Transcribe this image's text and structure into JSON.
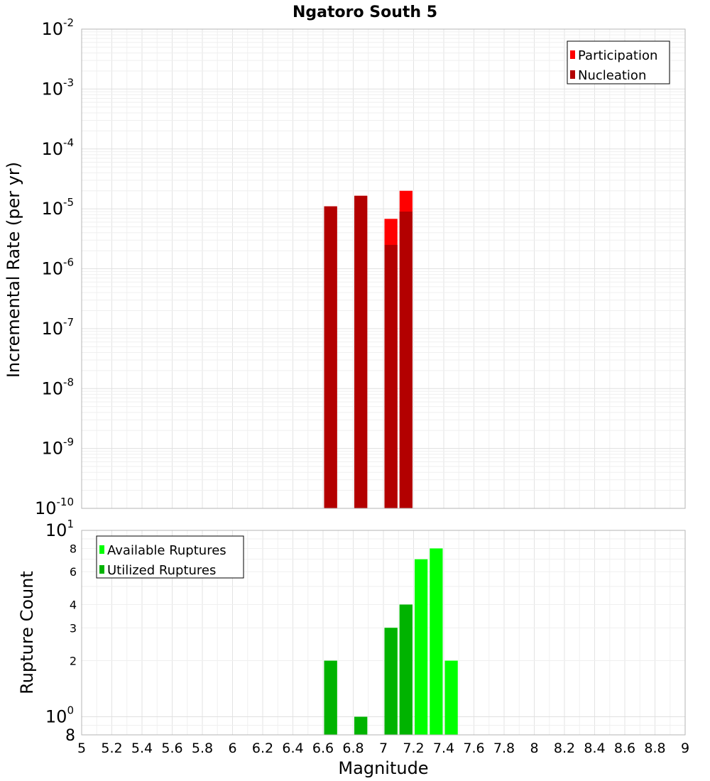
{
  "title": "Ngatoro South 5",
  "chart_data": [
    {
      "type": "bar",
      "title": "Ngatoro South 5",
      "xlabel": "Magnitude",
      "ylabel": "Incremental Rate (per yr)",
      "yscale": "log",
      "xlim": [
        5,
        9
      ],
      "ylim": [
        1e-10,
        0.01
      ],
      "bar_width": 0.1,
      "x": [
        6.65,
        6.85,
        7.05,
        7.15
      ],
      "series": [
        {
          "name": "Participation",
          "color": "#ff0000",
          "values": [
            1.1e-05,
            1.65e-05,
            6.8e-06,
            2e-05
          ]
        },
        {
          "name": "Nucleation",
          "color": "#b30000",
          "values": [
            1.1e-05,
            1.65e-05,
            2.5e-06,
            9e-06
          ]
        }
      ],
      "legend_position": "top-right",
      "y_tick_labels": [
        {
          "base": "10",
          "exp": "-2"
        },
        {
          "base": "10",
          "exp": "-3"
        },
        {
          "base": "10",
          "exp": "-4"
        },
        {
          "base": "10",
          "exp": "-5"
        },
        {
          "base": "10",
          "exp": "-6"
        },
        {
          "base": "10",
          "exp": "-7"
        },
        {
          "base": "10",
          "exp": "-8"
        },
        {
          "base": "10",
          "exp": "-9"
        },
        {
          "base": "10",
          "exp": "-10"
        }
      ],
      "grid": true
    },
    {
      "type": "bar",
      "xlabel": "Magnitude",
      "ylabel": "Rupture Count",
      "yscale": "log",
      "xlim": [
        5,
        9
      ],
      "ylim": [
        0.8,
        10
      ],
      "bar_width": 0.1,
      "x": [
        6.65,
        6.85,
        7.05,
        7.15,
        7.25,
        7.35,
        7.45
      ],
      "series": [
        {
          "name": "Available Ruptures",
          "color": "#00ff00",
          "values": [
            2,
            1,
            3,
            4,
            7,
            8,
            2
          ]
        },
        {
          "name": "Utilized Ruptures",
          "color": "#00b300",
          "values": [
            2,
            1,
            3,
            4,
            0,
            0,
            0
          ]
        }
      ],
      "legend_position": "top-left",
      "y_tick_labels": [
        {
          "value": 10,
          "base": "10",
          "exp": "1"
        },
        {
          "value": 8,
          "label": "8"
        },
        {
          "value": 6,
          "label": "6"
        },
        {
          "value": 4,
          "label": "4"
        },
        {
          "value": 3,
          "label": "3"
        },
        {
          "value": 2,
          "label": "2"
        },
        {
          "value": 1,
          "base": "10",
          "exp": "0"
        },
        {
          "value": 0.8,
          "label": "8"
        }
      ],
      "x_tick_labels": [
        "5",
        "5.2",
        "5.4",
        "5.6",
        "5.8",
        "6",
        "6.2",
        "6.4",
        "6.6",
        "6.8",
        "7",
        "7.2",
        "7.4",
        "7.6",
        "7.8",
        "8",
        "8.2",
        "8.4",
        "8.6",
        "8.8",
        "9"
      ],
      "grid": true
    }
  ]
}
